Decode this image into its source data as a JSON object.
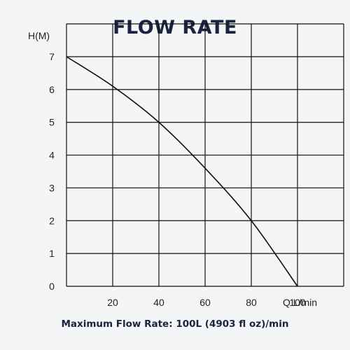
{
  "title": "FLOW RATE",
  "footer": "Maximum Flow Rate: 100L (4903 fl oz)/min",
  "chart_data": {
    "type": "line",
    "ylabel": "H(M)",
    "xlabel": "Q L/min",
    "xlim": [
      0,
      100
    ],
    "ylim": [
      0,
      7
    ],
    "x_ticks": [
      20,
      40,
      60,
      80,
      100
    ],
    "y_ticks": [
      0,
      1,
      2,
      3,
      4,
      5,
      6,
      7
    ],
    "grid": true,
    "x": [
      0,
      20,
      40,
      60,
      80,
      100
    ],
    "y": [
      7,
      6.1,
      5,
      3.6,
      2,
      0
    ],
    "colors": {
      "line": "#111111",
      "grid": "#111111",
      "title": "#1a2340"
    }
  }
}
